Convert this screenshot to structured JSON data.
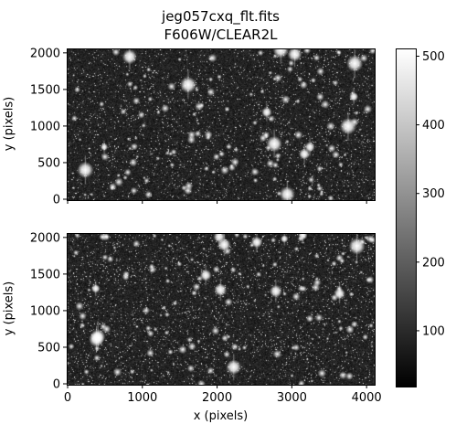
{
  "figure": {
    "title_line1": "jeg057cxq_flt.fits",
    "title_line2": "F606W/CLEAR2L"
  },
  "panels": [
    {
      "ylabel": "y (pixels)",
      "yticks": [
        "0",
        "500",
        "1000",
        "1500",
        "2000"
      ],
      "ytick_values": [
        0,
        500,
        1000,
        1500,
        2000
      ],
      "ylim": [
        0,
        2048
      ],
      "xlim": [
        0,
        4096
      ]
    },
    {
      "ylabel": "y (pixels)",
      "yticks": [
        "0",
        "500",
        "1000",
        "1500",
        "2000"
      ],
      "ytick_values": [
        0,
        500,
        1000,
        1500,
        2000
      ],
      "xlabel": "x (pixels)",
      "xticks": [
        "0",
        "1000",
        "2000",
        "3000",
        "4000"
      ],
      "xtick_values": [
        0,
        1000,
        2000,
        3000,
        4000
      ],
      "ylim": [
        0,
        2048
      ],
      "xlim": [
        0,
        4096
      ]
    }
  ],
  "colorbar": {
    "colormap": "gray",
    "ticks": [
      "100",
      "200",
      "300",
      "400",
      "500"
    ],
    "tick_values": [
      100,
      200,
      300,
      400,
      500
    ],
    "range": [
      20,
      510
    ]
  }
}
